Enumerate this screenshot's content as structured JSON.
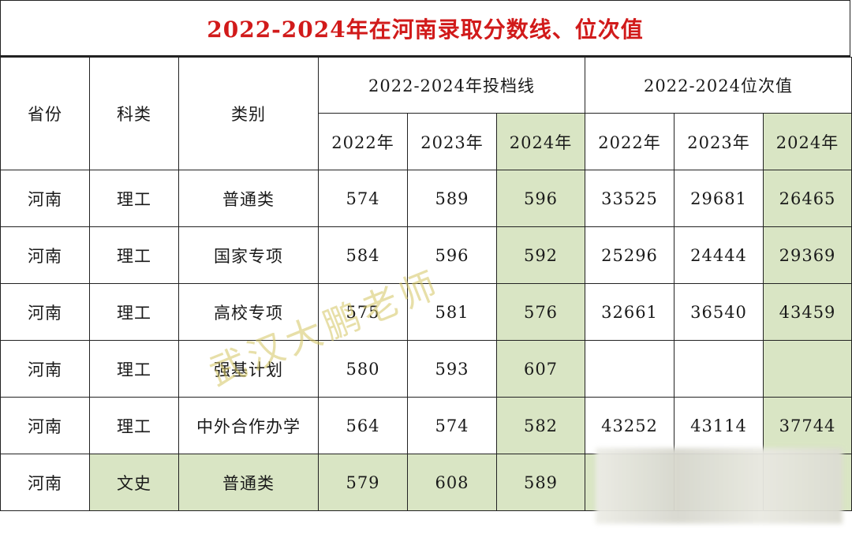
{
  "title": "2022-2024年在河南录取分数线、位次值",
  "headers": {
    "province": "省份",
    "subject": "科类",
    "category": "类别",
    "score_group": "2022-2024年投档线",
    "rank_group": "2022-2024位次值",
    "years": [
      "2022年",
      "2023年",
      "2024年",
      "2022年",
      "2023年",
      "2024年"
    ]
  },
  "rows": [
    {
      "province": "河南",
      "subject": "理工",
      "category": "普通类",
      "s2022": "574",
      "s2023": "589",
      "s2024": "596",
      "r2022": "33525",
      "r2023": "29681",
      "r2024": "26465"
    },
    {
      "province": "河南",
      "subject": "理工",
      "category": "国家专项",
      "s2022": "584",
      "s2023": "596",
      "s2024": "592",
      "r2022": "25296",
      "r2023": "24444",
      "r2024": "29369"
    },
    {
      "province": "河南",
      "subject": "理工",
      "category": "高校专项",
      "s2022": "575",
      "s2023": "581",
      "s2024": "576",
      "r2022": "32661",
      "r2023": "36540",
      "r2024": "43459"
    },
    {
      "province": "河南",
      "subject": "理工",
      "category": "强基计划",
      "s2022": "580",
      "s2023": "593",
      "s2024": "607",
      "r2022": "",
      "r2023": "",
      "r2024": ""
    },
    {
      "province": "河南",
      "subject": "理工",
      "category": "中外合作办学",
      "s2022": "564",
      "s2023": "574",
      "s2024": "582",
      "r2022": "43252",
      "r2023": "43114",
      "r2024": "37744"
    },
    {
      "province": "河南",
      "subject": "文史",
      "category": "普通类",
      "s2022": "579",
      "s2023": "608",
      "s2024": "589",
      "r2022": "",
      "r2023": "",
      "r2024": ""
    }
  ],
  "watermark": "武汉大鹏老师",
  "colors": {
    "title": "#d11a1a",
    "highlight": "#d9e5c4",
    "border": "#222222"
  }
}
